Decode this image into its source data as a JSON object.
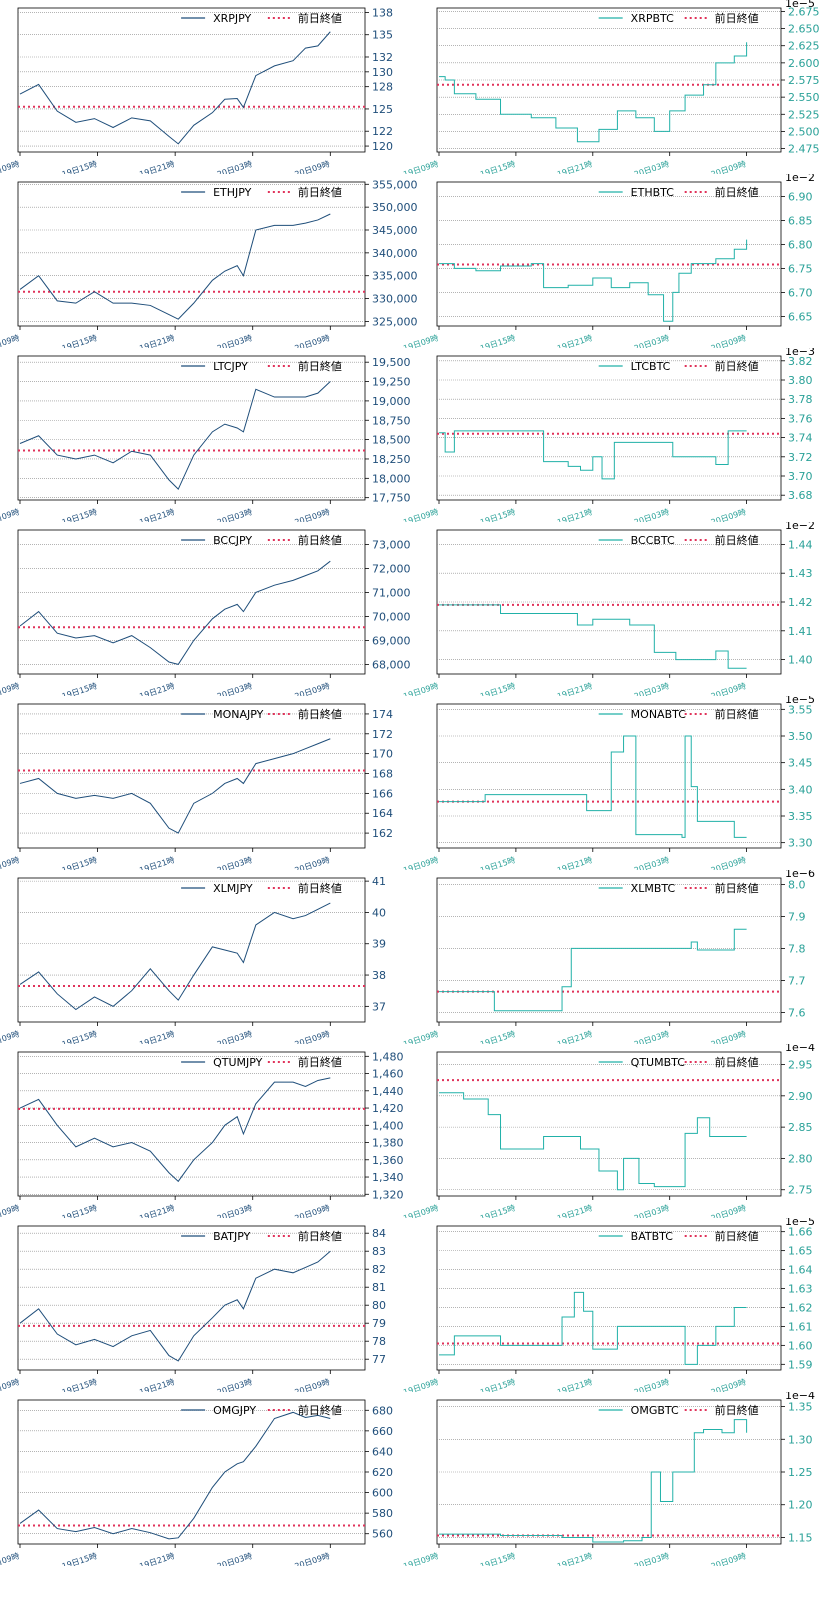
{
  "colors": {
    "jpy_line": "#1f4e7a",
    "btc_line": "#21b1a8",
    "ref_line": "#e0325a",
    "grid": "#888888",
    "jpy_tick": "#1f4e7a",
    "btc_tick": "#2aa198"
  },
  "legend_ref_label": "前日終値",
  "x_tick_labels": [
    "19日09時",
    "19日15時",
    "19日21時",
    "20日03時",
    "20日09時"
  ],
  "chart_data": [
    {
      "type": "line",
      "name": "XRPJPY",
      "currency": "JPY",
      "yticks": [
        "120",
        "122",
        "125",
        "128",
        "130",
        "132",
        "135",
        "138"
      ],
      "ytick_values": [
        120,
        122,
        125,
        128,
        130,
        132,
        135,
        138
      ],
      "ylim": [
        119.2,
        138.6
      ],
      "ref": 125.3,
      "x": [
        0,
        0.06,
        0.12,
        0.18,
        0.24,
        0.3,
        0.36,
        0.42,
        0.48,
        0.51,
        0.56,
        0.62,
        0.66,
        0.7,
        0.72,
        0.76,
        0.82,
        0.88,
        0.92,
        0.96,
        1.0
      ],
      "y": [
        127,
        128.3,
        124.7,
        123.2,
        123.7,
        122.5,
        123.8,
        123.4,
        121.3,
        120.3,
        122.8,
        124.5,
        126.3,
        126.4,
        125.2,
        129.5,
        130.8,
        131.5,
        133.2,
        133.5,
        135.4
      ]
    },
    {
      "type": "line",
      "name": "XRPBTC",
      "currency": "BTC",
      "exponent": "1e−5",
      "yticks": [
        "2.475",
        "2.500",
        "2.525",
        "2.550",
        "2.575",
        "2.600",
        "2.625",
        "2.650",
        "2.675"
      ],
      "ytick_values": [
        2.475,
        2.5,
        2.525,
        2.55,
        2.575,
        2.6,
        2.625,
        2.65,
        2.675
      ],
      "ylim": [
        2.47,
        2.68
      ],
      "ref": 2.568,
      "x": [
        0,
        0.02,
        0.05,
        0.12,
        0.2,
        0.3,
        0.38,
        0.45,
        0.52,
        0.58,
        0.64,
        0.7,
        0.75,
        0.8,
        0.86,
        0.9,
        0.96,
        1.0
      ],
      "y": [
        2.58,
        2.575,
        2.555,
        2.547,
        2.525,
        2.52,
        2.505,
        2.485,
        2.503,
        2.53,
        2.52,
        2.5,
        2.53,
        2.553,
        2.568,
        2.6,
        2.61,
        2.63
      ]
    },
    {
      "type": "line",
      "name": "ETHJPY",
      "currency": "JPY",
      "yticks": [
        "325,000",
        "330,000",
        "335,000",
        "340,000",
        "345,000",
        "350,000",
        "355,000"
      ],
      "ytick_values": [
        325000,
        330000,
        335000,
        340000,
        345000,
        350000,
        355000
      ],
      "ylim": [
        324000,
        355500
      ],
      "ref": 331500,
      "x": [
        0,
        0.06,
        0.12,
        0.18,
        0.24,
        0.3,
        0.36,
        0.42,
        0.48,
        0.51,
        0.56,
        0.62,
        0.66,
        0.7,
        0.72,
        0.76,
        0.82,
        0.88,
        0.92,
        0.96,
        1.0
      ],
      "y": [
        332000,
        335000,
        329500,
        329000,
        331500,
        329000,
        329000,
        328500,
        326500,
        325500,
        329000,
        334000,
        336000,
        337200,
        335000,
        345000,
        346000,
        346000,
        346500,
        347200,
        348500
      ]
    },
    {
      "type": "line",
      "name": "ETHBTC",
      "currency": "BTC",
      "exponent": "1e−2",
      "yticks": [
        "6.65",
        "6.70",
        "6.75",
        "6.80",
        "6.85",
        "6.90"
      ],
      "ytick_values": [
        6.65,
        6.7,
        6.75,
        6.8,
        6.85,
        6.9
      ],
      "ylim": [
        6.63,
        6.93
      ],
      "ref": 6.758,
      "x": [
        0,
        0.05,
        0.12,
        0.2,
        0.3,
        0.34,
        0.42,
        0.5,
        0.56,
        0.62,
        0.68,
        0.73,
        0.76,
        0.78,
        0.82,
        0.9,
        0.96,
        1.0
      ],
      "y": [
        6.76,
        6.75,
        6.745,
        6.755,
        6.76,
        6.71,
        6.715,
        6.73,
        6.71,
        6.72,
        6.695,
        6.64,
        6.7,
        6.74,
        6.76,
        6.77,
        6.79,
        6.81
      ]
    },
    {
      "type": "line",
      "name": "LTCJPY",
      "currency": "JPY",
      "yticks": [
        "17,750",
        "18,000",
        "18,250",
        "18,500",
        "18,750",
        "19,000",
        "19,250",
        "19,500"
      ],
      "ytick_values": [
        17750,
        18000,
        18250,
        18500,
        18750,
        19000,
        19250,
        19500
      ],
      "ylim": [
        17720,
        19580
      ],
      "ref": 18360,
      "x": [
        0,
        0.06,
        0.12,
        0.18,
        0.24,
        0.3,
        0.36,
        0.42,
        0.48,
        0.51,
        0.56,
        0.62,
        0.66,
        0.7,
        0.72,
        0.76,
        0.82,
        0.88,
        0.92,
        0.96,
        1.0
      ],
      "y": [
        18450,
        18550,
        18300,
        18250,
        18300,
        18200,
        18350,
        18300,
        17980,
        17860,
        18300,
        18600,
        18700,
        18650,
        18600,
        19150,
        19050,
        19050,
        19050,
        19100,
        19250
      ]
    },
    {
      "type": "line",
      "name": "LTCBTC",
      "currency": "BTC",
      "exponent": "1e−3",
      "yticks": [
        "3.68",
        "3.70",
        "3.72",
        "3.74",
        "3.76",
        "3.78",
        "3.80",
        "3.82"
      ],
      "ytick_values": [
        3.68,
        3.7,
        3.72,
        3.74,
        3.76,
        3.78,
        3.8,
        3.82
      ],
      "ylim": [
        3.675,
        3.825
      ],
      "ref": 3.744,
      "x": [
        0,
        0.02,
        0.05,
        0.12,
        0.2,
        0.3,
        0.34,
        0.42,
        0.46,
        0.5,
        0.53,
        0.57,
        0.62,
        0.7,
        0.76,
        0.82,
        0.9,
        0.94,
        1.0
      ],
      "y": [
        3.745,
        3.725,
        3.747,
        3.747,
        3.747,
        3.747,
        3.715,
        3.71,
        3.706,
        3.72,
        3.697,
        3.735,
        3.735,
        3.735,
        3.72,
        3.72,
        3.712,
        3.747,
        3.747
      ]
    },
    {
      "type": "line",
      "name": "BCCJPY",
      "currency": "JPY",
      "yticks": [
        "68,000",
        "69,000",
        "70,000",
        "71,000",
        "72,000",
        "73,000"
      ],
      "ytick_values": [
        68000,
        69000,
        70000,
        71000,
        72000,
        73000
      ],
      "ylim": [
        67600,
        73600
      ],
      "ref": 69550,
      "x": [
        0,
        0.06,
        0.12,
        0.18,
        0.24,
        0.3,
        0.36,
        0.42,
        0.48,
        0.51,
        0.56,
        0.62,
        0.66,
        0.7,
        0.72,
        0.76,
        0.82,
        0.88,
        0.92,
        0.96,
        1.0
      ],
      "y": [
        69600,
        70200,
        69300,
        69100,
        69200,
        68900,
        69200,
        68700,
        68100,
        68000,
        69000,
        69900,
        70300,
        70500,
        70200,
        71000,
        71300,
        71500,
        71700,
        71900,
        72300
      ]
    },
    {
      "type": "line",
      "name": "BCCBTC",
      "currency": "BTC",
      "exponent": "1e−2",
      "yticks": [
        "1.40",
        "1.41",
        "1.42",
        "1.43",
        "1.44"
      ],
      "ytick_values": [
        1.4,
        1.41,
        1.42,
        1.43,
        1.44
      ],
      "ylim": [
        1.395,
        1.445
      ],
      "ref": 1.419,
      "x": [
        0,
        0.12,
        0.2,
        0.35,
        0.45,
        0.5,
        0.62,
        0.7,
        0.77,
        0.85,
        0.9,
        0.94,
        1.0
      ],
      "y": [
        1.419,
        1.419,
        1.416,
        1.416,
        1.412,
        1.414,
        1.412,
        1.4025,
        1.4,
        1.4,
        1.403,
        1.397,
        1.397
      ]
    },
    {
      "type": "line",
      "name": "MONAJPY",
      "currency": "JPY",
      "yticks": [
        "162",
        "164",
        "166",
        "168",
        "170",
        "172",
        "174"
      ],
      "ytick_values": [
        162,
        164,
        166,
        168,
        170,
        172,
        174
      ],
      "ylim": [
        160.5,
        175
      ],
      "ref": 168.3,
      "x": [
        0,
        0.06,
        0.12,
        0.18,
        0.24,
        0.3,
        0.36,
        0.42,
        0.48,
        0.51,
        0.56,
        0.62,
        0.66,
        0.7,
        0.72,
        0.76,
        0.82,
        0.88,
        0.92,
        0.96,
        1.0
      ],
      "y": [
        167,
        167.5,
        166,
        165.5,
        165.8,
        165.5,
        166,
        165,
        162.5,
        162,
        165,
        166,
        167,
        167.5,
        167,
        169,
        169.5,
        170,
        170.5,
        171,
        171.5
      ]
    },
    {
      "type": "line",
      "name": "MONABTC",
      "currency": "BTC",
      "exponent": "1e−5",
      "yticks": [
        "3.30",
        "3.35",
        "3.40",
        "3.45",
        "3.50",
        "3.55"
      ],
      "ytick_values": [
        3.3,
        3.35,
        3.4,
        3.45,
        3.5,
        3.55
      ],
      "ylim": [
        3.29,
        3.56
      ],
      "ref": 3.377,
      "x": [
        0,
        0.15,
        0.3,
        0.45,
        0.48,
        0.52,
        0.56,
        0.6,
        0.62,
        0.64,
        0.7,
        0.79,
        0.8,
        0.82,
        0.84,
        0.9,
        0.96,
        1.0
      ],
      "y": [
        3.377,
        3.39,
        3.39,
        3.39,
        3.36,
        3.36,
        3.47,
        3.5,
        3.5,
        3.315,
        3.315,
        3.31,
        3.5,
        3.405,
        3.34,
        3.34,
        3.31,
        3.31
      ]
    },
    {
      "type": "line",
      "name": "XLMJPY",
      "currency": "JPY",
      "yticks": [
        "37",
        "38",
        "39",
        "40",
        "41"
      ],
      "ytick_values": [
        37,
        38,
        39,
        40,
        41
      ],
      "ylim": [
        36.5,
        41.1
      ],
      "ref": 37.65,
      "x": [
        0,
        0.06,
        0.12,
        0.18,
        0.24,
        0.3,
        0.36,
        0.42,
        0.48,
        0.51,
        0.56,
        0.62,
        0.66,
        0.7,
        0.72,
        0.76,
        0.82,
        0.88,
        0.92,
        0.96,
        1.0
      ],
      "y": [
        37.7,
        38.1,
        37.4,
        36.9,
        37.3,
        37.0,
        37.5,
        38.2,
        37.5,
        37.2,
        38.0,
        38.9,
        38.8,
        38.7,
        38.4,
        39.6,
        40.0,
        39.8,
        39.9,
        40.1,
        40.3
      ]
    },
    {
      "type": "line",
      "name": "XLMBTC",
      "currency": "BTC",
      "exponent": "1e−6",
      "yticks": [
        "7.6",
        "7.7",
        "7.8",
        "7.9",
        "8.0"
      ],
      "ytick_values": [
        7.6,
        7.7,
        7.8,
        7.9,
        8.0
      ],
      "ylim": [
        7.57,
        8.02
      ],
      "ref": 7.665,
      "x": [
        0,
        0.15,
        0.18,
        0.38,
        0.4,
        0.43,
        0.6,
        0.8,
        0.82,
        0.84,
        0.9,
        0.96,
        1.0
      ],
      "y": [
        7.665,
        7.665,
        7.605,
        7.605,
        7.68,
        7.8,
        7.8,
        7.8,
        7.82,
        7.795,
        7.795,
        7.86,
        7.86
      ]
    },
    {
      "type": "line",
      "name": "QTUMJPY",
      "currency": "JPY",
      "yticks": [
        "1,320",
        "1,340",
        "1,360",
        "1,380",
        "1,400",
        "1,420",
        "1,440",
        "1,460",
        "1,480"
      ],
      "ytick_values": [
        1320,
        1340,
        1360,
        1380,
        1400,
        1420,
        1440,
        1460,
        1480
      ],
      "ylim": [
        1318,
        1485
      ],
      "ref": 1419,
      "x": [
        0,
        0.06,
        0.12,
        0.18,
        0.24,
        0.3,
        0.36,
        0.42,
        0.48,
        0.51,
        0.56,
        0.62,
        0.66,
        0.7,
        0.72,
        0.76,
        0.82,
        0.88,
        0.92,
        0.96,
        1.0
      ],
      "y": [
        1420,
        1430,
        1400,
        1375,
        1385,
        1375,
        1380,
        1370,
        1345,
        1335,
        1360,
        1380,
        1400,
        1410,
        1390,
        1425,
        1450,
        1450,
        1445,
        1452,
        1455
      ]
    },
    {
      "type": "line",
      "name": "QTUMBTC",
      "currency": "BTC",
      "exponent": "1e−4",
      "yticks": [
        "2.75",
        "2.80",
        "2.85",
        "2.90",
        "2.95"
      ],
      "ytick_values": [
        2.75,
        2.8,
        2.85,
        2.9,
        2.95
      ],
      "ylim": [
        2.74,
        2.97
      ],
      "ref": 2.925,
      "x": [
        0,
        0.08,
        0.16,
        0.2,
        0.3,
        0.34,
        0.4,
        0.46,
        0.52,
        0.58,
        0.6,
        0.65,
        0.7,
        0.75,
        0.8,
        0.84,
        0.88,
        0.94,
        1.0
      ],
      "y": [
        2.905,
        2.895,
        2.87,
        2.815,
        2.815,
        2.835,
        2.835,
        2.815,
        2.78,
        2.75,
        2.8,
        2.76,
        2.755,
        2.755,
        2.84,
        2.865,
        2.835,
        2.835,
        2.835
      ]
    },
    {
      "type": "line",
      "name": "BATJPY",
      "currency": "JPY",
      "yticks": [
        "77",
        "78",
        "79",
        "80",
        "81",
        "82",
        "83",
        "84"
      ],
      "ytick_values": [
        77,
        78,
        79,
        80,
        81,
        82,
        83,
        84
      ],
      "ylim": [
        76.4,
        84.4
      ],
      "ref": 78.85,
      "x": [
        0,
        0.06,
        0.12,
        0.18,
        0.24,
        0.3,
        0.36,
        0.42,
        0.48,
        0.51,
        0.56,
        0.62,
        0.66,
        0.7,
        0.72,
        0.76,
        0.82,
        0.88,
        0.92,
        0.96,
        1.0
      ],
      "y": [
        79,
        79.8,
        78.4,
        77.8,
        78.1,
        77.7,
        78.3,
        78.6,
        77.2,
        76.9,
        78.3,
        79.3,
        80,
        80.3,
        79.8,
        81.5,
        82.0,
        81.8,
        82.1,
        82.4,
        83.0
      ]
    },
    {
      "type": "line",
      "name": "BATBTC",
      "currency": "BTC",
      "exponent": "1e−5",
      "yticks": [
        "1.59",
        "1.60",
        "1.61",
        "1.62",
        "1.63",
        "1.64",
        "1.65",
        "1.66"
      ],
      "ytick_values": [
        1.59,
        1.6,
        1.61,
        1.62,
        1.63,
        1.64,
        1.65,
        1.66
      ],
      "ylim": [
        1.587,
        1.663
      ],
      "ref": 1.601,
      "x": [
        0,
        0.05,
        0.12,
        0.2,
        0.3,
        0.38,
        0.4,
        0.44,
        0.47,
        0.5,
        0.58,
        0.66,
        0.7,
        0.8,
        0.84,
        0.9,
        0.96,
        1.0
      ],
      "y": [
        1.595,
        1.605,
        1.605,
        1.6,
        1.6,
        1.6,
        1.615,
        1.628,
        1.618,
        1.598,
        1.61,
        1.61,
        1.61,
        1.59,
        1.6,
        1.61,
        1.62,
        1.62
      ]
    },
    {
      "type": "line",
      "name": "OMGJPY",
      "currency": "JPY",
      "yticks": [
        "560",
        "580",
        "600",
        "620",
        "640",
        "660",
        "680"
      ],
      "ytick_values": [
        560,
        580,
        600,
        620,
        640,
        660,
        680
      ],
      "ylim": [
        550,
        690
      ],
      "ref": 568,
      "x": [
        0,
        0.06,
        0.12,
        0.18,
        0.24,
        0.3,
        0.36,
        0.42,
        0.48,
        0.51,
        0.56,
        0.62,
        0.66,
        0.7,
        0.72,
        0.76,
        0.82,
        0.88,
        0.92,
        0.96,
        1.0
      ],
      "y": [
        570,
        583,
        565,
        562,
        566,
        560,
        565,
        561,
        555,
        556,
        575,
        605,
        620,
        628,
        630,
        645,
        672,
        678,
        673,
        675,
        672
      ]
    },
    {
      "type": "line",
      "name": "OMGBTC",
      "currency": "BTC",
      "exponent": "1e−4",
      "yticks": [
        "1.15",
        "1.20",
        "1.25",
        "1.30",
        "1.35"
      ],
      "ytick_values": [
        1.15,
        1.2,
        1.25,
        1.3,
        1.35
      ],
      "ylim": [
        1.14,
        1.36
      ],
      "ref": 1.153,
      "x": [
        0,
        0.2,
        0.4,
        0.5,
        0.6,
        0.66,
        0.69,
        0.72,
        0.76,
        0.8,
        0.83,
        0.86,
        0.92,
        0.96,
        1.0
      ],
      "y": [
        1.155,
        1.153,
        1.15,
        1.143,
        1.145,
        1.15,
        1.25,
        1.205,
        1.25,
        1.25,
        1.31,
        1.315,
        1.31,
        1.33,
        1.31
      ]
    }
  ]
}
